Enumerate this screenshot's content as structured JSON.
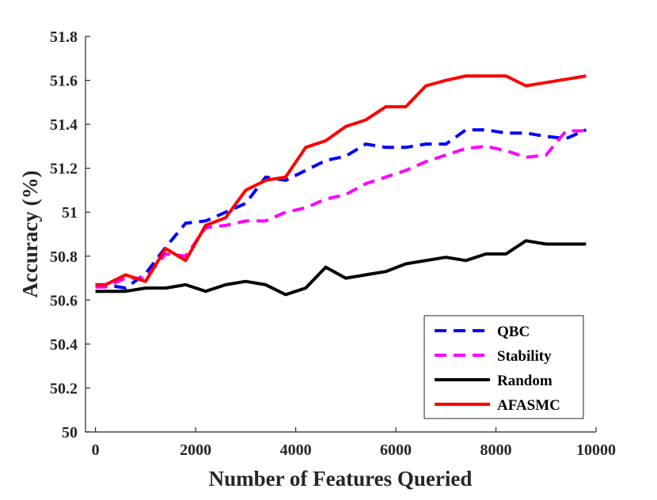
{
  "chart_data": {
    "type": "line",
    "title": "",
    "xlabel": "Number of Features Queried",
    "ylabel": "Accuracy (%)",
    "xlim": [
      -200,
      10000
    ],
    "ylim": [
      50,
      51.8
    ],
    "xticks": [
      0,
      2000,
      4000,
      6000,
      8000,
      10000
    ],
    "xtick_labels": [
      "0",
      "2000",
      "4000",
      "6000",
      "8000",
      "10000"
    ],
    "yticks": [
      50,
      50.2,
      50.4,
      50.6,
      50.8,
      51,
      51.2,
      51.4,
      51.6,
      51.8
    ],
    "ytick_labels": [
      "50",
      "50.2",
      "50.4",
      "50.6",
      "50.8",
      "51",
      "51.2",
      "51.4",
      "51.6",
      "51.8"
    ],
    "grid": false,
    "legend_position": "bottom-right",
    "series": [
      {
        "name": "QBC",
        "color": "#0000ff",
        "dash": "dashed",
        "x": [
          0,
          200,
          600,
          1000,
          1400,
          1800,
          2200,
          2600,
          3000,
          3400,
          3800,
          4200,
          4600,
          5000,
          5400,
          5800,
          6200,
          6600,
          7000,
          7400,
          7800,
          8200,
          8600,
          9000,
          9400,
          9800
        ],
        "y": [
          50.67,
          50.67,
          50.655,
          50.72,
          50.84,
          50.95,
          50.96,
          51.0,
          51.04,
          51.16,
          51.145,
          51.19,
          51.235,
          51.255,
          51.31,
          51.295,
          51.295,
          51.31,
          51.31,
          51.375,
          51.375,
          51.36,
          51.36,
          51.345,
          51.335,
          51.375
        ]
      },
      {
        "name": "Stability",
        "color": "#ff00ff",
        "dash": "dashed",
        "x": [
          0,
          200,
          600,
          1000,
          1400,
          1800,
          2200,
          2600,
          3000,
          3400,
          3800,
          4200,
          4600,
          5000,
          5400,
          5800,
          6200,
          6600,
          7000,
          7400,
          7800,
          8200,
          8600,
          9000,
          9400,
          9800
        ],
        "y": [
          50.66,
          50.66,
          50.7,
          50.7,
          50.81,
          50.8,
          50.93,
          50.94,
          50.96,
          50.96,
          51.0,
          51.02,
          51.06,
          51.08,
          51.13,
          51.16,
          51.19,
          51.23,
          51.26,
          51.29,
          51.3,
          51.28,
          51.25,
          51.26,
          51.37,
          51.37
        ]
      },
      {
        "name": "Random",
        "color": "#000000",
        "dash": "solid",
        "x": [
          0,
          200,
          600,
          1000,
          1400,
          1800,
          2200,
          2600,
          3000,
          3400,
          3800,
          4200,
          4600,
          5000,
          5400,
          5800,
          6200,
          6600,
          7000,
          7400,
          7800,
          8200,
          8600,
          9000,
          9400,
          9800
        ],
        "y": [
          50.64,
          50.64,
          50.64,
          50.655,
          50.655,
          50.67,
          50.64,
          50.67,
          50.685,
          50.67,
          50.625,
          50.655,
          50.75,
          50.7,
          50.715,
          50.73,
          50.765,
          50.78,
          50.795,
          50.78,
          50.81,
          50.81,
          50.87,
          50.855,
          50.855,
          50.855
        ]
      },
      {
        "name": "AFASMC",
        "color": "#ff0000",
        "dash": "solid",
        "x": [
          0,
          200,
          600,
          1000,
          1400,
          1800,
          2200,
          2600,
          3000,
          3400,
          3800,
          4200,
          4600,
          5000,
          5400,
          5800,
          6200,
          6600,
          7000,
          7400,
          7800,
          8200,
          8600,
          9000,
          9400,
          9800
        ],
        "y": [
          50.67,
          50.67,
          50.715,
          50.685,
          50.835,
          50.78,
          50.94,
          50.975,
          51.1,
          51.145,
          51.16,
          51.295,
          51.325,
          51.39,
          51.42,
          51.48,
          51.48,
          51.575,
          51.6,
          51.62,
          51.62,
          51.62,
          51.575,
          51.59,
          51.605,
          51.62
        ]
      }
    ]
  }
}
